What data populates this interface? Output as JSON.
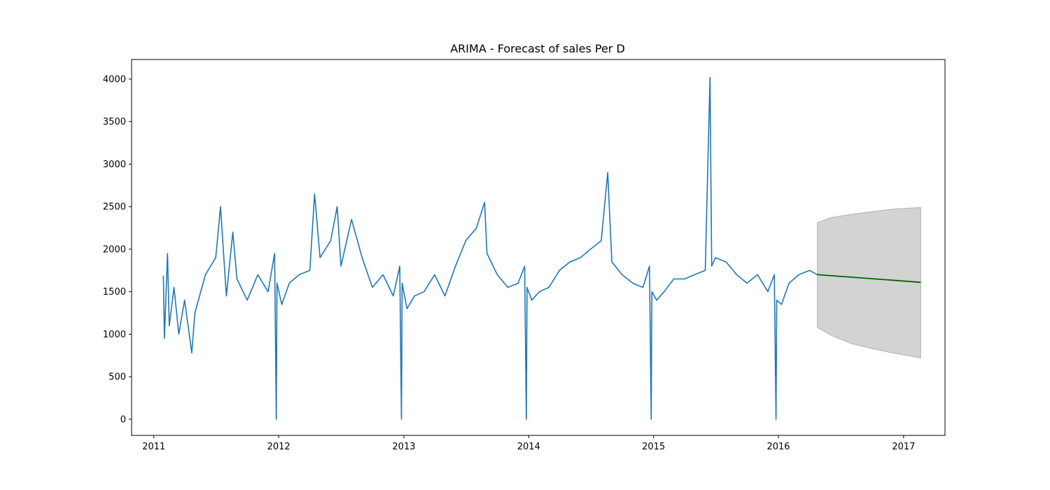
{
  "chart_data": {
    "type": "line",
    "title": "ARIMA - Forecast of sales Per D",
    "xlabel": "",
    "ylabel": "",
    "x_ticks": [
      "2011",
      "2012",
      "2013",
      "2014",
      "2015",
      "2016",
      "2017"
    ],
    "y_ticks": [
      "0",
      "500",
      "1000",
      "1500",
      "2000",
      "2500",
      "3000",
      "3500",
      "4000"
    ],
    "xlim": [
      "2010-10-28",
      "2017-05-02"
    ],
    "ylim": [
      -190,
      4230
    ],
    "grid": false,
    "legend": "none",
    "colors": {
      "observed": "#1f77b4",
      "forecast": "#006400",
      "confidence_band": "#d3d3d3",
      "confidence_edge": "#b0b0b0"
    },
    "series": [
      {
        "type": "line",
        "x": [
          "2011-01-29",
          "2011-02-01",
          "2011-02-10",
          "2011-02-15",
          "2011-03-01",
          "2011-03-15",
          "2011-04-01",
          "2011-04-22",
          "2011-05-01",
          "2011-06-01",
          "2011-07-01",
          "2011-07-15",
          "2011-08-01",
          "2011-08-20",
          "2011-09-01",
          "2011-10-01",
          "2011-11-01",
          "2011-12-01",
          "2011-12-20",
          "2011-12-25",
          "2011-12-27",
          "2012-01-10",
          "2012-02-01",
          "2012-03-01",
          "2012-04-01",
          "2012-04-15",
          "2012-05-01",
          "2012-06-01",
          "2012-06-20",
          "2012-07-01",
          "2012-08-01",
          "2012-09-01",
          "2012-10-01",
          "2012-11-01",
          "2012-12-01",
          "2012-12-20",
          "2012-12-25",
          "2012-12-27",
          "2013-01-10",
          "2013-02-01",
          "2013-03-01",
          "2013-04-01",
          "2013-05-01",
          "2013-06-01",
          "2013-07-01",
          "2013-08-01",
          "2013-08-25",
          "2013-09-01",
          "2013-10-01",
          "2013-11-01",
          "2013-12-01",
          "2013-12-20",
          "2013-12-25",
          "2013-12-27",
          "2014-01-10",
          "2014-02-01",
          "2014-03-01",
          "2014-04-01",
          "2014-05-01",
          "2014-06-01",
          "2014-07-01",
          "2014-08-01",
          "2014-08-20",
          "2014-09-01",
          "2014-10-01",
          "2014-11-01",
          "2014-12-01",
          "2014-12-20",
          "2014-12-25",
          "2014-12-27",
          "2015-01-10",
          "2015-02-01",
          "2015-03-01",
          "2015-04-01",
          "2015-05-01",
          "2015-06-01",
          "2015-06-15",
          "2015-06-20",
          "2015-07-01",
          "2015-08-01",
          "2015-09-01",
          "2015-10-01",
          "2015-11-01",
          "2015-12-01",
          "2015-12-20",
          "2015-12-25",
          "2015-12-27",
          "2016-01-10",
          "2016-02-01",
          "2016-03-01",
          "2016-04-01",
          "2016-04-24"
        ],
        "y": [
          1690,
          950,
          1950,
          1100,
          1550,
          1000,
          1400,
          780,
          1250,
          1700,
          1900,
          2500,
          1450,
          2200,
          1650,
          1400,
          1700,
          1500,
          1950,
          0,
          1600,
          1350,
          1600,
          1700,
          1750,
          2650,
          1900,
          2100,
          2500,
          1800,
          2350,
          1900,
          1550,
          1700,
          1450,
          1800,
          0,
          1600,
          1300,
          1450,
          1500,
          1700,
          1450,
          1800,
          2100,
          2250,
          2550,
          1950,
          1700,
          1550,
          1600,
          1800,
          0,
          1550,
          1400,
          1500,
          1550,
          1750,
          1850,
          1900,
          2000,
          2100,
          2900,
          1850,
          1700,
          1600,
          1550,
          1800,
          0,
          1500,
          1400,
          1500,
          1650,
          1650,
          1700,
          1750,
          4020,
          1800,
          1900,
          1850,
          1700,
          1600,
          1700,
          1500,
          1700,
          0,
          1400,
          1350,
          1600,
          1700,
          1750,
          1700
        ]
      },
      {
        "type": "forecast",
        "x": [
          "2016-04-24",
          "2017-02-20"
        ],
        "y": [
          1700,
          1610
        ]
      },
      {
        "type": "confidence_band",
        "x": [
          "2016-04-24",
          "2016-06-01",
          "2016-08-01",
          "2016-10-01",
          "2016-12-01",
          "2017-02-20"
        ],
        "upper": [
          2310,
          2370,
          2410,
          2440,
          2470,
          2490
        ],
        "lower": [
          1080,
          990,
          890,
          830,
          780,
          720
        ]
      }
    ]
  }
}
